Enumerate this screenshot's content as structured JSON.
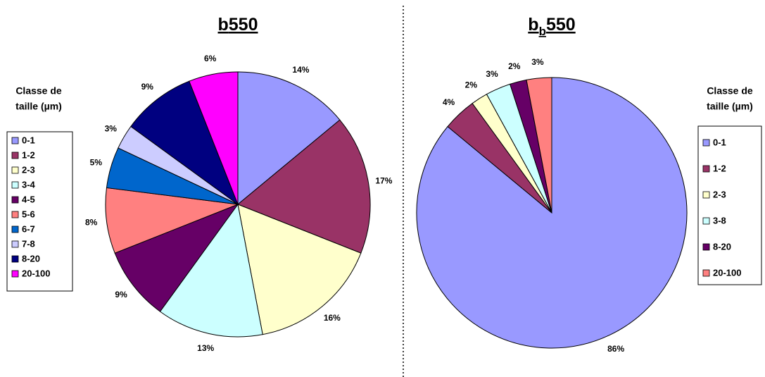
{
  "chart_data": [
    {
      "type": "pie",
      "title": [
        {
          "text": "b"
        },
        {
          "text": "550"
        }
      ],
      "legend_title": [
        "Classe de",
        "taille (µm)"
      ],
      "categories": [
        "0-1",
        "1-2",
        "2-3",
        "3-4",
        "4-5",
        "5-6",
        "6-7",
        "7-8",
        "8-20",
        "20-100"
      ],
      "values": [
        14,
        17,
        16,
        13,
        9,
        8,
        5,
        3,
        9,
        6
      ],
      "value_labels": [
        "14%",
        "17%",
        "16%",
        "13%",
        "9%",
        "8%",
        "5%",
        "3%",
        "9%",
        "6%"
      ],
      "colors": [
        "#9999ff",
        "#993366",
        "#ffffcc",
        "#ccffff",
        "#660066",
        "#ff8080",
        "#0066cc",
        "#ccccff",
        "#000080",
        "#ff00ff"
      ],
      "legend": "left"
    },
    {
      "type": "pie",
      "title": [
        {
          "text": "b"
        },
        {
          "text": "b",
          "sub": true
        },
        {
          "text": "550"
        }
      ],
      "legend_title": [
        "Classe de",
        "taille (µm)"
      ],
      "categories": [
        "0-1",
        "1-2",
        "2-3",
        "3-8",
        "8-20",
        "20-100"
      ],
      "values": [
        86,
        4,
        2,
        3,
        2,
        3
      ],
      "value_labels": [
        "86%",
        "4%",
        "2%",
        "3%",
        "2%",
        "3%"
      ],
      "colors": [
        "#9999ff",
        "#993366",
        "#ffffcc",
        "#ccffff",
        "#660066",
        "#ff8080"
      ],
      "legend": "right"
    }
  ]
}
